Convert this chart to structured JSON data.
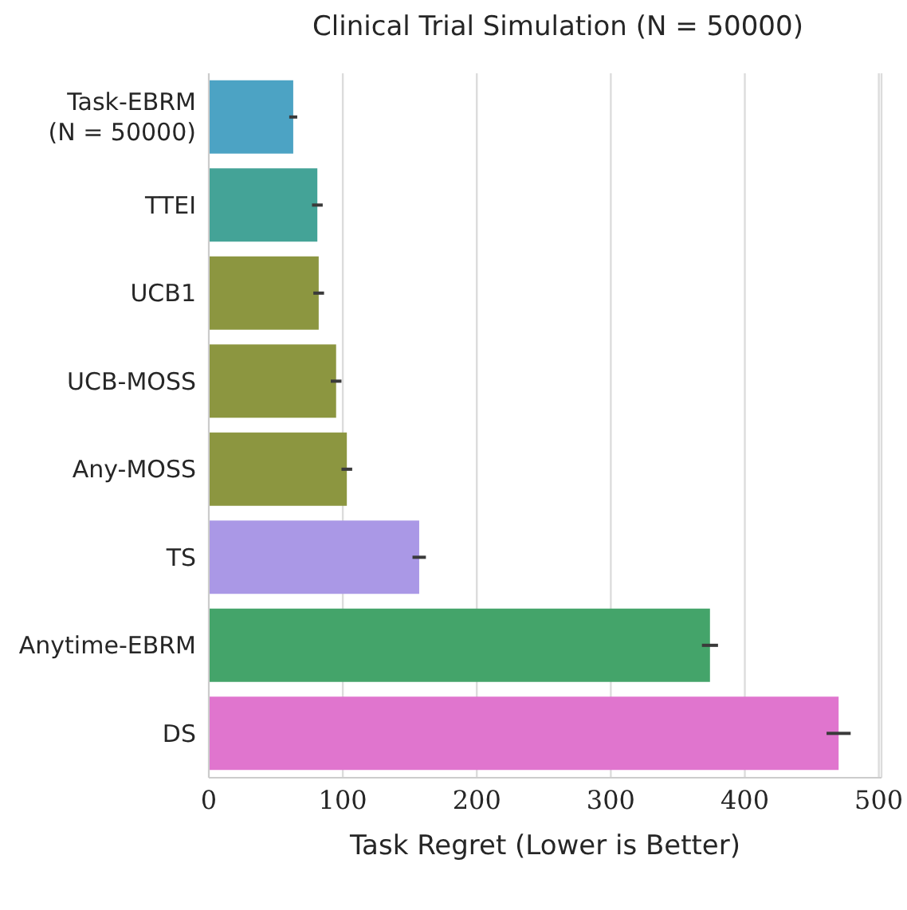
{
  "chart_data": {
    "type": "bar",
    "orientation": "horizontal",
    "title": "Clinical Trial Simulation (N = 50000)",
    "xlabel": "Task Regret (Lower is Better)",
    "categories": [
      "Task-EBRM\n(N = 50000)",
      "TTEI",
      "UCB1",
      "UCB-MOSS",
      "Any-MOSS",
      "TS",
      "Anytime-EBRM",
      "DS"
    ],
    "values": [
      63,
      81,
      82,
      95,
      103,
      157,
      374,
      470
    ],
    "errors": [
      3,
      4,
      4,
      4,
      4,
      5,
      6,
      9
    ],
    "colors": [
      "#4ca3c4",
      "#44a397",
      "#8c9640",
      "#8c9640",
      "#8c9640",
      "#aa98e6",
      "#44a46a",
      "#e075ce"
    ],
    "xlim": [
      0,
      502
    ],
    "xticks": [
      0,
      100,
      200,
      300,
      400,
      500
    ],
    "grid": "x"
  }
}
